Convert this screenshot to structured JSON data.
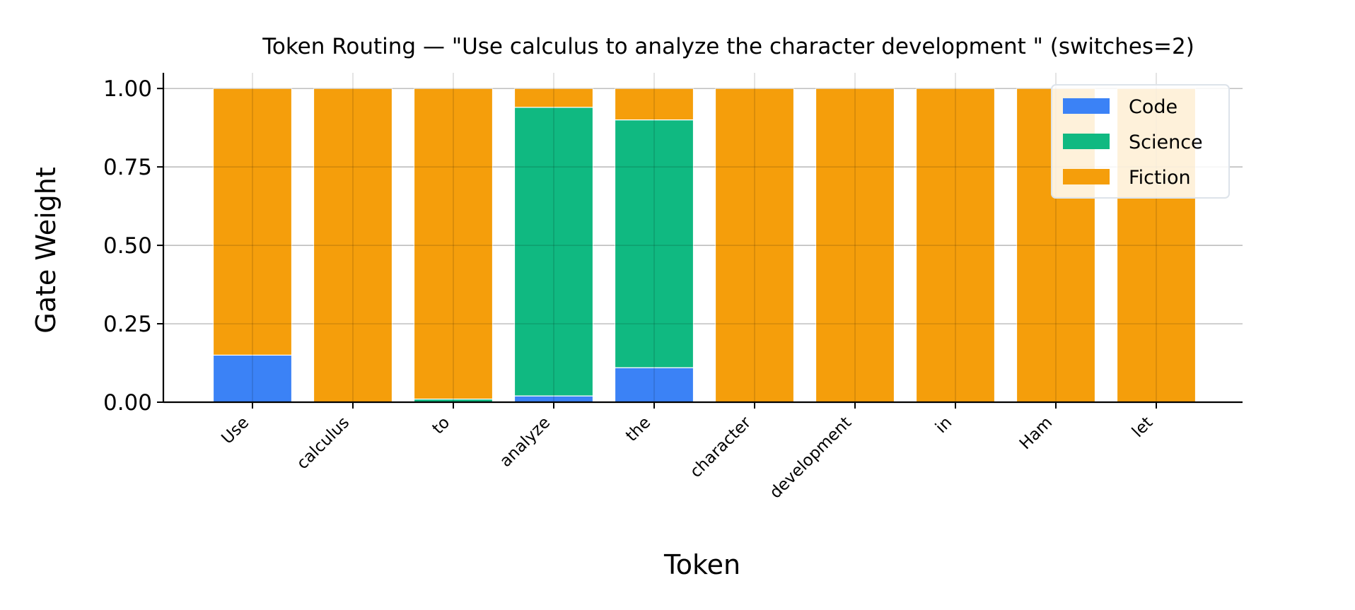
{
  "chart_data": {
    "type": "bar",
    "stacked": true,
    "title": "Token Routing — \"Use calculus to analyze the character development \" (switches=2)",
    "xlabel": "Token",
    "ylabel": "Gate Weight",
    "ylim": [
      0,
      1.05
    ],
    "yticks": [
      "0.00",
      "0.25",
      "0.50",
      "0.75",
      "1.00"
    ],
    "ytick_values": [
      0,
      0.25,
      0.5,
      0.75,
      1.0
    ],
    "grid": true,
    "legend_position": "top-right",
    "categories": [
      "Use",
      "calculus",
      "to",
      "analyze",
      "the",
      "character",
      "development",
      "in",
      "Ham",
      "let"
    ],
    "series": [
      {
        "name": "Code",
        "color": "#3b82f6",
        "values": [
          0.15,
          0.0,
          0.0,
          0.02,
          0.11,
          0.0,
          0.0,
          0.0,
          0.0,
          0.0
        ]
      },
      {
        "name": "Science",
        "color": "#10b981",
        "values": [
          0.0,
          0.0,
          0.01,
          0.92,
          0.79,
          0.0,
          0.0,
          0.0,
          0.0,
          0.0
        ]
      },
      {
        "name": "Fiction",
        "color": "#f59e0b",
        "values": [
          0.85,
          1.0,
          0.99,
          0.06,
          0.1,
          1.0,
          1.0,
          1.0,
          1.0,
          1.0
        ]
      }
    ]
  }
}
